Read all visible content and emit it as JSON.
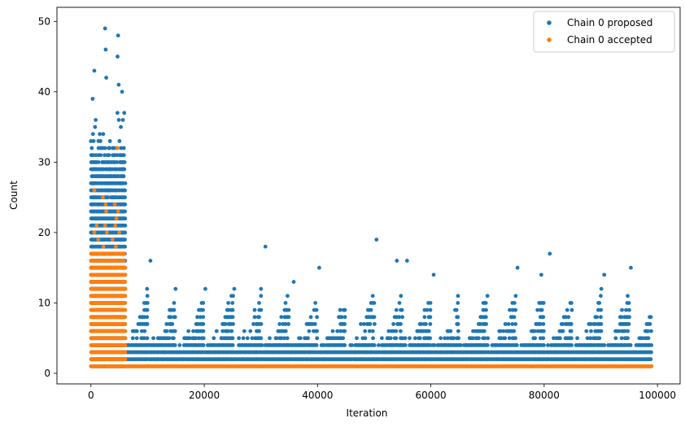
{
  "chart_data": {
    "type": "scatter",
    "xlabel": "Iteration",
    "ylabel": "Count",
    "xlim": [
      -6000,
      104000
    ],
    "ylim": [
      -1.5,
      52
    ],
    "x_ticks": [
      0,
      20000,
      40000,
      60000,
      80000,
      100000
    ],
    "y_ticks": [
      0,
      10,
      20,
      30,
      40,
      50
    ],
    "legend_position": "top-right",
    "grid": false,
    "series": [
      {
        "name": "Chain 0 proposed",
        "color": "#1f77b4",
        "description_ranges": [
          {
            "x_from": 0,
            "x_to": 6000,
            "y_from": 1,
            "y_to": 30
          },
          {
            "x_from": 6000,
            "x_to": 99000,
            "y_from": 1,
            "y_to": 8
          }
        ],
        "peaks": [
          {
            "x": 2500,
            "y": 49
          },
          {
            "x": 4800,
            "y": 48
          },
          {
            "x": 2600,
            "y": 46
          },
          {
            "x": 4700,
            "y": 45
          },
          {
            "x": 600,
            "y": 43
          },
          {
            "x": 2700,
            "y": 42
          },
          {
            "x": 4900,
            "y": 41
          },
          {
            "x": 300,
            "y": 39
          },
          {
            "x": 5500,
            "y": 40
          },
          {
            "x": 10500,
            "y": 16
          },
          {
            "x": 30800,
            "y": 18
          },
          {
            "x": 50400,
            "y": 19
          },
          {
            "x": 54000,
            "y": 16
          },
          {
            "x": 55800,
            "y": 16
          },
          {
            "x": 81000,
            "y": 17
          },
          {
            "x": 75300,
            "y": 15
          },
          {
            "x": 95300,
            "y": 15
          },
          {
            "x": 40300,
            "y": 15
          },
          {
            "x": 20200,
            "y": 12
          },
          {
            "x": 25300,
            "y": 12
          },
          {
            "x": 60500,
            "y": 14
          },
          {
            "x": 79500,
            "y": 14
          },
          {
            "x": 90600,
            "y": 14
          },
          {
            "x": 35800,
            "y": 13
          }
        ]
      },
      {
        "name": "Chain 0 accepted",
        "color": "#ff7f0e",
        "description_ranges": [
          {
            "x_from": 0,
            "x_to": 6000,
            "y_from": 1,
            "y_to": 17
          },
          {
            "x_from": 6000,
            "x_to": 99000,
            "y_from": 1,
            "y_to": 1
          }
        ],
        "outliers": [
          {
            "x": 4700,
            "y": 32
          },
          {
            "x": 600,
            "y": 26
          },
          {
            "x": 2100,
            "y": 25
          },
          {
            "x": 2600,
            "y": 24
          },
          {
            "x": 4200,
            "y": 24
          },
          {
            "x": 2700,
            "y": 23
          },
          {
            "x": 4800,
            "y": 23
          },
          {
            "x": 4500,
            "y": 22
          },
          {
            "x": 1000,
            "y": 21
          },
          {
            "x": 2500,
            "y": 21
          },
          {
            "x": 4300,
            "y": 21
          },
          {
            "x": 600,
            "y": 20
          },
          {
            "x": 2800,
            "y": 20
          },
          {
            "x": 5000,
            "y": 20
          },
          {
            "x": 1300,
            "y": 19
          },
          {
            "x": 3800,
            "y": 19
          },
          {
            "x": 2200,
            "y": 18
          },
          {
            "x": 4400,
            "y": 18
          }
        ]
      }
    ]
  }
}
